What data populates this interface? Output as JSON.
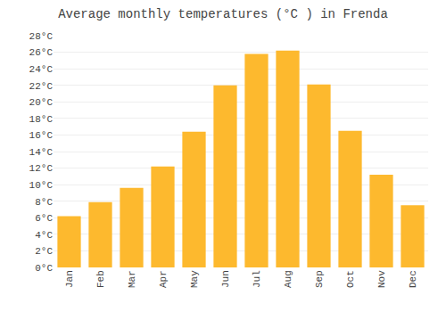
{
  "chart_data": {
    "type": "bar",
    "title": "Average monthly temperatures (°C ) in Frenda",
    "categories": [
      "Jan",
      "Feb",
      "Mar",
      "Apr",
      "May",
      "Jun",
      "Jul",
      "Aug",
      "Sep",
      "Oct",
      "Nov",
      "Dec"
    ],
    "values": [
      6.2,
      7.9,
      9.6,
      12.2,
      16.4,
      22.0,
      25.8,
      26.2,
      22.1,
      16.5,
      11.2,
      7.5
    ],
    "color": "#FDB92E",
    "ylim": [
      0,
      28
    ],
    "yticks": [
      {
        "value": 0,
        "label": "0°C"
      },
      {
        "value": 2,
        "label": "2°C"
      },
      {
        "value": 4,
        "label": "4°C"
      },
      {
        "value": 6,
        "label": "6°C"
      },
      {
        "value": 8,
        "label": "8°C"
      },
      {
        "value": 10,
        "label": "10°C"
      },
      {
        "value": 12,
        "label": "12°C"
      },
      {
        "value": 14,
        "label": "14°C"
      },
      {
        "value": 16,
        "label": "16°C"
      },
      {
        "value": 18,
        "label": "18°C"
      },
      {
        "value": 20,
        "label": "20°C"
      },
      {
        "value": 22,
        "label": "22°C"
      },
      {
        "value": 24,
        "label": "24°C"
      },
      {
        "value": 26,
        "label": "26°C"
      },
      {
        "value": 28,
        "label": "28°C"
      }
    ],
    "grid": true
  }
}
